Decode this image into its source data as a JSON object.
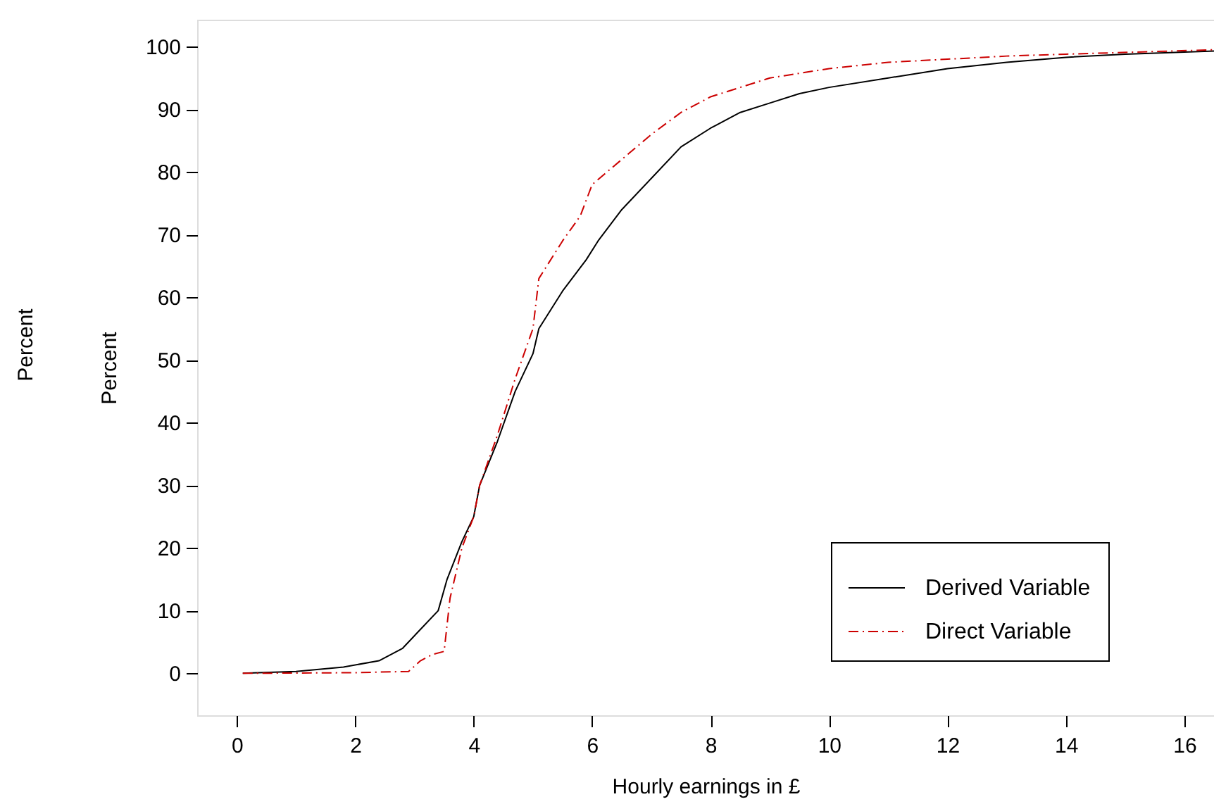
{
  "chart_data": {
    "type": "line",
    "xlabel": "Hourly earnings in £",
    "ylabel": "Percent",
    "annotations": [
      "Percent"
    ],
    "xlim": [
      -0.67,
      16.5
    ],
    "ylim": [
      -6.7,
      104.3
    ],
    "xticks": [
      0,
      2,
      4,
      6,
      8,
      10,
      12,
      14,
      16
    ],
    "yticks": [
      0,
      10,
      20,
      30,
      40,
      50,
      60,
      70,
      80,
      90,
      100
    ],
    "grid": false,
    "legend": "bottom right",
    "marker": "none",
    "series": [
      {
        "name": "Derived Variable",
        "color": "#000000",
        "line_style": "solid",
        "x": [
          0.1,
          1,
          1.8,
          2.4,
          2.8,
          3.1,
          3.4,
          3.55,
          3.8,
          4.0,
          4.1,
          4.4,
          4.7,
          5.0,
          5.1,
          5.5,
          5.9,
          6.1,
          6.5,
          7.0,
          7.5,
          8,
          8.5,
          9,
          9.5,
          10,
          11,
          12,
          13,
          14,
          15,
          16.5
        ],
        "values": [
          0,
          0.3,
          1,
          2,
          4,
          7,
          10,
          15,
          21,
          25,
          30,
          37,
          45,
          51,
          55,
          61,
          66,
          69,
          74,
          79,
          84,
          87,
          89.5,
          91,
          92.5,
          93.5,
          95,
          96.5,
          97.5,
          98.3,
          98.8,
          99.3
        ]
      },
      {
        "name": "Direct Variable",
        "color": "#cc0000",
        "line_style": "dashdot",
        "x": [
          0.1,
          2,
          2.9,
          3.1,
          3.3,
          3.5,
          3.6,
          3.8,
          4.0,
          4.1,
          4.4,
          4.7,
          5.0,
          5.1,
          5.5,
          5.8,
          6.0,
          6.5,
          7.0,
          7.5,
          8.0,
          8.5,
          9.0,
          10,
          11,
          12,
          13,
          14,
          16.5
        ],
        "values": [
          0,
          0.1,
          0.3,
          2,
          3,
          3.5,
          12,
          20,
          25,
          30,
          38,
          47,
          55,
          63,
          69,
          73,
          78,
          82,
          86,
          89.5,
          92,
          93.5,
          95,
          96.5,
          97.5,
          98,
          98.5,
          98.8,
          99.5
        ]
      }
    ]
  }
}
